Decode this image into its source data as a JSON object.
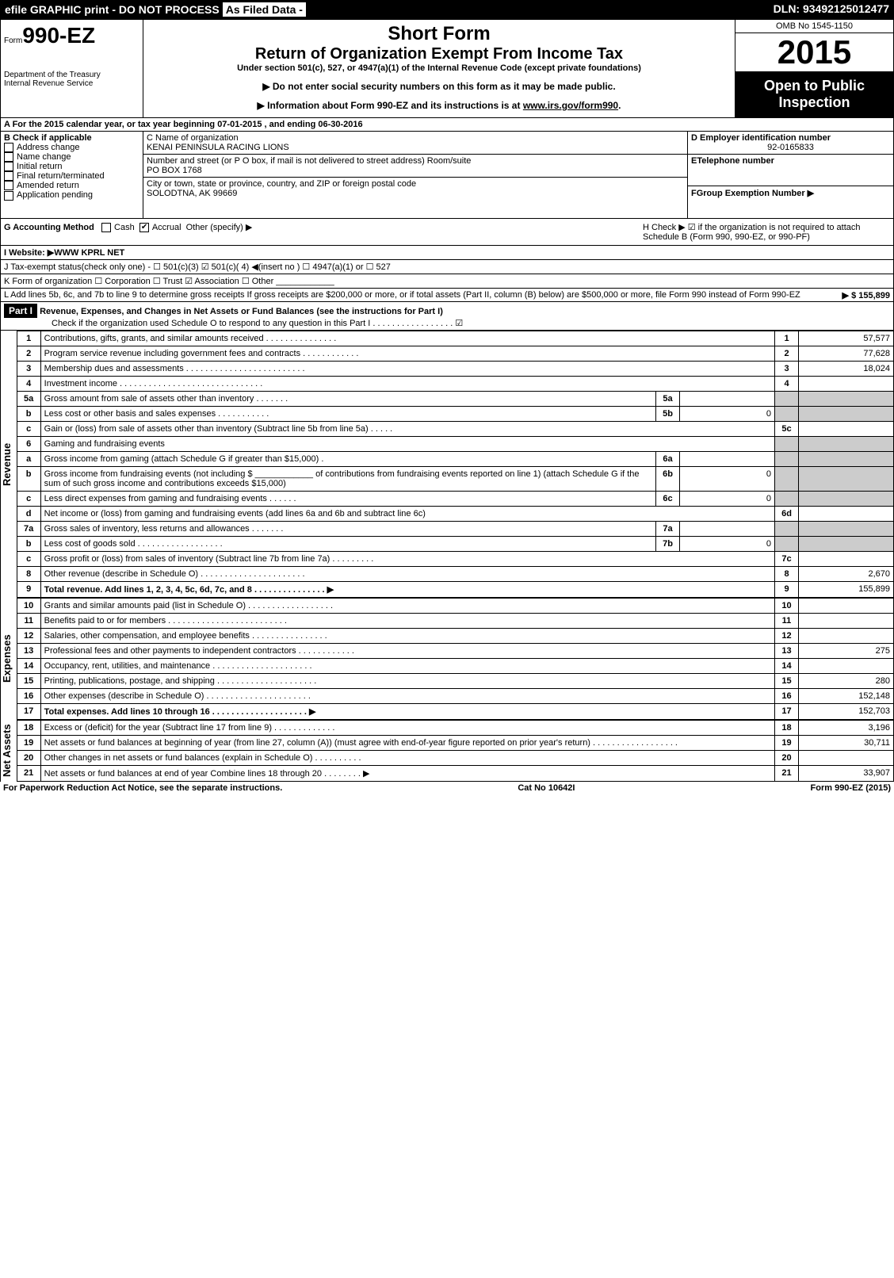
{
  "topbar": {
    "efile": "efile GRAPHIC print - DO NOT PROCESS",
    "asfiled": "As Filed Data -",
    "dln": "DLN: 93492125012477"
  },
  "header": {
    "form_prefix": "Form",
    "form_number": "990-EZ",
    "dept1": "Department of the Treasury",
    "dept2": "Internal Revenue Service",
    "title": "Short Form",
    "subtitle": "Return of Organization Exempt From Income Tax",
    "under": "Under section 501(c), 527, or 4947(a)(1) of the Internal Revenue Code (except private foundations)",
    "note1": "▶ Do not enter social security numbers on this form as it may be made public.",
    "note2": "▶ Information about Form 990-EZ and its instructions is at",
    "note2_link": "www.irs.gov/form990",
    "omb": "OMB No 1545-1150",
    "year": "2015",
    "open": "Open to Public Inspection"
  },
  "rowA": "A For the 2015 calendar year, or tax year beginning 07-01-2015          , and ending 06-30-2016",
  "colB": {
    "label": "B Check if applicable",
    "items": [
      "Address change",
      "Name change",
      "Initial return",
      "Final return/terminated",
      "Amended return",
      "Application pending"
    ]
  },
  "colC": {
    "name_label": "C Name of organization",
    "name": "KENAI PENINSULA RACING LIONS",
    "addr_label": "Number and street (or P O box, if mail is not delivered to street address) Room/suite",
    "addr": "PO BOX 1768",
    "city_label": "City or town, state or province, country, and ZIP or foreign postal code",
    "city": "SOLODTNA, AK  99669"
  },
  "colD": {
    "label": "D Employer identification number",
    "value": "92-0165833",
    "e_label": "ETelephone number",
    "f_label": "FGroup Exemption Number   ▶"
  },
  "lineG": {
    "label": "G Accounting Method",
    "opt1": "Cash",
    "opt2": "Accrual",
    "opt3": "Other (specify) ▶"
  },
  "lineH": "H  Check ▶  ☑ if the organization is not required to attach Schedule B (Form 990, 990-EZ, or 990-PF)",
  "lineI": "I Website: ▶WWW KPRL NET",
  "lineJ": "J Tax-exempt status(check only one) -  ☐ 501(c)(3)  ☑ 501(c)( 4) ◀(insert no ) ☐ 4947(a)(1) or ☐ 527",
  "lineK": "K Form of organization    ☐ Corporation   ☐ Trust   ☑ Association   ☐ Other ____________",
  "lineL": {
    "text": "L Add lines 5b, 6c, and 7b to line 9 to determine gross receipts If gross receipts are $200,000 or more, or if total assets (Part II, column (B) below) are $500,000 or more, file Form 990 instead of Form 990-EZ",
    "amount": "▶ $ 155,899"
  },
  "part1": {
    "label": "Part I",
    "title": "Revenue, Expenses, and Changes in Net Assets or Fund Balances (see the instructions for Part I)",
    "check": "Check if the organization used Schedule O to respond to any question in this Part I . . . . . . . . . . . . . . . . . ☑"
  },
  "sections": {
    "revenue": "Revenue",
    "expenses": "Expenses",
    "netassets": "Net Assets"
  },
  "lines": [
    {
      "n": "1",
      "desc": "Contributions, gifts, grants, and similar amounts received     . . . . . . . . . . . . . . .",
      "ln": "1",
      "val": "57,577"
    },
    {
      "n": "2",
      "desc": "Program service revenue including government fees and contracts     . . . . . . . . . . . .",
      "ln": "2",
      "val": "77,628"
    },
    {
      "n": "3",
      "desc": "Membership dues and assessments      . . . . . . . . . . . . . . . . . . . . . . . . .",
      "ln": "3",
      "val": "18,024"
    },
    {
      "n": "4",
      "desc": "Investment income      . . . . . . . . . . . . . . . . . . . . . . . . . . . . . .",
      "ln": "4",
      "val": ""
    },
    {
      "n": "5a",
      "desc": "Gross amount from sale of assets other than inventory      . . . . . . .",
      "sub": "5a",
      "subval": ""
    },
    {
      "n": "b",
      "desc": "Less cost or other basis and sales expenses      . . . . . . . . . . .",
      "sub": "5b",
      "subval": "0"
    },
    {
      "n": "c",
      "desc": "Gain or (loss) from sale of assets other than inventory (Subtract line 5b from line 5a)   . . . . .",
      "ln": "5c",
      "val": ""
    },
    {
      "n": "6",
      "desc": "Gaming and fundraising events",
      "shadedright": true
    },
    {
      "n": "a",
      "desc": "Gross income from gaming (attach Schedule G if greater than $15,000)       .",
      "sub": "6a",
      "subval": ""
    },
    {
      "n": "b",
      "desc": "Gross income from fundraising events (not including $ ____________ of contributions from fundraising events reported on line 1) (attach Schedule G if the sum of such gross income and contributions exceeds $15,000)",
      "sub": "6b",
      "subval": "0"
    },
    {
      "n": "c",
      "desc": "Less direct expenses from gaming and fundraising events     . . . . . .",
      "sub": "6c",
      "subval": "0"
    },
    {
      "n": "d",
      "desc": "Net income or (loss) from gaming and fundraising events (add lines 6a and 6b and subtract line 6c)",
      "ln": "6d",
      "val": ""
    },
    {
      "n": "7a",
      "desc": "Gross sales of inventory, less returns and allowances      . . . . . . .",
      "sub": "7a",
      "subval": ""
    },
    {
      "n": "b",
      "desc": "Less cost of goods sold         . . . . . . . . . . . . . . . . . .",
      "sub": "7b",
      "subval": "0"
    },
    {
      "n": "c",
      "desc": "Gross profit or (loss) from sales of inventory (Subtract line 7b from line 7a)    . . . . . . . . .",
      "ln": "7c",
      "val": ""
    },
    {
      "n": "8",
      "desc": "Other revenue (describe in Schedule O)    . . . . . . . . . . . . . . . . . . . . . .",
      "ln": "8",
      "val": "2,670"
    },
    {
      "n": "9",
      "desc": "Total revenue. Add lines 1, 2, 3, 4, 5c, 6d, 7c, and 8     . . . . . . . . . . . . . . .   ▶",
      "ln": "9",
      "val": "155,899",
      "bold": true
    }
  ],
  "expenses": [
    {
      "n": "10",
      "desc": "Grants and similar amounts paid (list in Schedule O)   . . . . . . . . . . . . . . . . . .",
      "ln": "10",
      "val": ""
    },
    {
      "n": "11",
      "desc": "Benefits paid to or for members     . . . . . . . . . . . . . . . . . . . . . . . . .",
      "ln": "11",
      "val": ""
    },
    {
      "n": "12",
      "desc": "Salaries, other compensation, and employee benefits      . . . . . . . . . . . . . . . .",
      "ln": "12",
      "val": ""
    },
    {
      "n": "13",
      "desc": "Professional fees and other payments to independent contractors     . . . . . . . . . . . .",
      "ln": "13",
      "val": "275"
    },
    {
      "n": "14",
      "desc": "Occupancy, rent, utilities, and maintenance     . . . . . . . . . . . . . . . . . . . . .",
      "ln": "14",
      "val": ""
    },
    {
      "n": "15",
      "desc": "Printing, publications, postage, and shipping    . . . . . . . . . . . . . . . . . . . . .",
      "ln": "15",
      "val": "280"
    },
    {
      "n": "16",
      "desc": "Other expenses (describe in Schedule O)    . . . . . . . . . . . . . . . . . . . . . .",
      "ln": "16",
      "val": "152,148"
    },
    {
      "n": "17",
      "desc": "Total expenses. Add lines 10 through 16     . . . . . . . . . . . . . . . . . . . .   ▶",
      "ln": "17",
      "val": "152,703",
      "bold": true
    }
  ],
  "netassets": [
    {
      "n": "18",
      "desc": "Excess or (deficit) for the year (Subtract line 17 from line 9)       . . . . . . . . . . . . .",
      "ln": "18",
      "val": "3,196"
    },
    {
      "n": "19",
      "desc": "Net assets or fund balances at beginning of year (from line 27, column (A)) (must agree with end-of-year figure reported on prior year's return)     . . . . . . . . . . . . . . . . . .",
      "ln": "19",
      "val": "30,711"
    },
    {
      "n": "20",
      "desc": "Other changes in net assets or fund balances (explain in Schedule O)    . . . . . . . . . .",
      "ln": "20",
      "val": ""
    },
    {
      "n": "21",
      "desc": "Net assets or fund balances at end of year Combine lines 18 through 20    . . . . . . . . ▶",
      "ln": "21",
      "val": "33,907"
    }
  ],
  "footer": {
    "left": "For Paperwork Reduction Act Notice, see the separate instructions.",
    "mid": "Cat No 10642I",
    "right": "Form 990-EZ (2015)"
  }
}
